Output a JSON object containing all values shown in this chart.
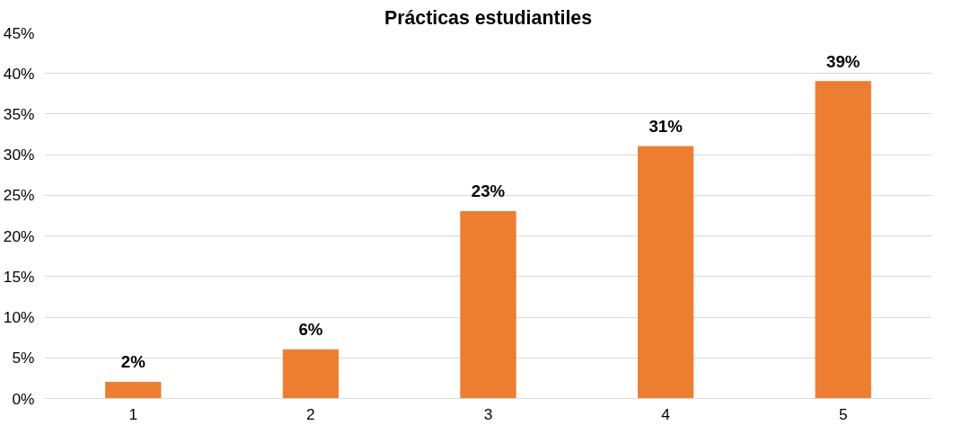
{
  "chart_data": {
    "type": "bar",
    "title": "Prácticas estudiantiles",
    "categories": [
      "1",
      "2",
      "3",
      "4",
      "5"
    ],
    "values": [
      2,
      6,
      23,
      31,
      39
    ],
    "color": "#ed7d31",
    "data_labels": true,
    "value_labels": [
      "2%",
      "6%",
      "23%",
      "31%",
      "39%"
    ],
    "ylim": [
      0,
      45
    ],
    "yticks": [
      {
        "value": 0,
        "label": "0%"
      },
      {
        "value": 5,
        "label": "5%"
      },
      {
        "value": 10,
        "label": "10%"
      },
      {
        "value": 15,
        "label": "15%"
      },
      {
        "value": 20,
        "label": "20%"
      },
      {
        "value": 25,
        "label": "25%"
      },
      {
        "value": 30,
        "label": "30%"
      },
      {
        "value": 35,
        "label": "35%"
      },
      {
        "value": 40,
        "label": "40%"
      },
      {
        "value": 45,
        "label": "45%"
      }
    ],
    "grid": "y"
  }
}
